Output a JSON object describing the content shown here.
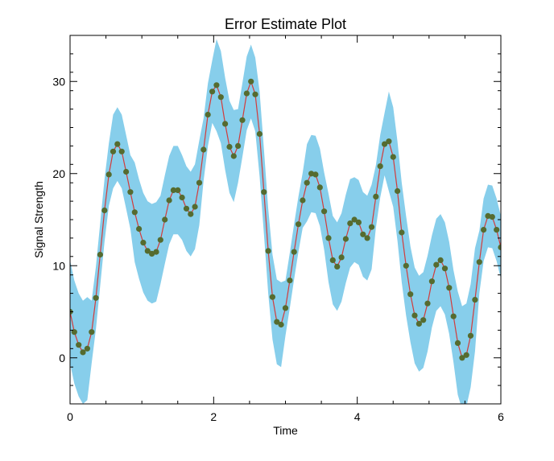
{
  "chart_data": {
    "type": "line",
    "title": "Error Estimate Plot",
    "xlabel": "Time",
    "ylabel": "Signal Strength",
    "xlim": [
      0,
      6
    ],
    "ylim": [
      -5,
      35
    ],
    "x_ticks": [
      0,
      2,
      4,
      6
    ],
    "y_ticks": [
      0,
      10,
      20,
      30
    ],
    "grid": false,
    "colors": {
      "band": "#87ceeb",
      "line": "#d23b3b",
      "marker": "#556b2f",
      "axis": "#000000"
    },
    "series": [
      {
        "x": [
          0.0,
          0.06,
          0.12,
          0.18,
          0.24,
          0.3,
          0.36,
          0.42,
          0.48,
          0.54,
          0.6,
          0.66,
          0.72,
          0.78,
          0.84,
          0.9,
          0.96,
          1.02,
          1.08,
          1.14,
          1.2,
          1.26,
          1.32,
          1.38,
          1.44,
          1.5,
          1.56,
          1.62,
          1.68,
          1.74,
          1.8,
          1.86,
          1.92,
          1.98,
          2.04,
          2.1,
          2.16,
          2.22,
          2.28,
          2.34,
          2.4,
          2.46,
          2.52,
          2.58,
          2.64,
          2.7,
          2.76,
          2.82,
          2.88,
          2.94,
          3.0,
          3.06,
          3.12,
          3.18,
          3.24,
          3.3,
          3.36,
          3.42,
          3.48,
          3.54,
          3.6,
          3.66,
          3.72,
          3.78,
          3.84,
          3.9,
          3.96,
          4.02,
          4.08,
          4.14,
          4.2,
          4.26,
          4.32,
          4.38,
          4.44,
          4.5,
          4.56,
          4.62,
          4.68,
          4.74,
          4.8,
          4.86,
          4.92,
          4.98,
          5.04,
          5.1,
          5.16,
          5.22,
          5.28,
          5.34,
          5.4,
          5.46,
          5.52,
          5.58,
          5.64,
          5.7,
          5.76,
          5.82,
          5.88,
          5.94,
          6.0
        ],
        "y": [
          5.0,
          2.8,
          1.4,
          0.6,
          1.0,
          2.8,
          6.5,
          11.2,
          16.0,
          19.9,
          22.4,
          23.2,
          22.4,
          20.2,
          18.0,
          15.8,
          14.0,
          12.5,
          11.6,
          11.3,
          11.5,
          12.8,
          15.0,
          17.1,
          18.2,
          18.2,
          17.4,
          16.2,
          15.6,
          16.4,
          19.0,
          22.6,
          26.4,
          28.9,
          29.6,
          28.3,
          25.4,
          22.9,
          21.9,
          23.0,
          25.8,
          28.7,
          30.0,
          28.6,
          24.3,
          18.0,
          11.6,
          6.6,
          3.9,
          3.6,
          5.4,
          8.4,
          11.5,
          14.5,
          17.1,
          19.0,
          20.0,
          19.9,
          18.5,
          15.9,
          13.0,
          10.6,
          9.9,
          10.9,
          12.9,
          14.6,
          15.0,
          14.7,
          13.4,
          13.0,
          14.2,
          17.5,
          20.8,
          23.2,
          23.5,
          21.8,
          18.1,
          13.6,
          10.0,
          6.9,
          4.6,
          3.7,
          4.1,
          5.9,
          8.3,
          10.1,
          10.6,
          9.7,
          7.6,
          4.5,
          1.6,
          0.0,
          0.3,
          2.4,
          6.3,
          10.4,
          13.9,
          15.4,
          15.3,
          13.9,
          12.0
        ],
        "error": [
          5.6,
          5.6,
          5.6,
          5.6,
          5.6,
          3.4,
          3.4,
          3.4,
          3.4,
          3.4,
          4.0,
          4.0,
          4.0,
          4.0,
          4.0,
          5.4,
          5.4,
          5.4,
          5.4,
          5.4,
          5.4,
          4.8,
          4.8,
          4.8,
          4.8,
          4.8,
          4.6,
          4.6,
          4.6,
          4.6,
          4.6,
          3.4,
          3.4,
          3.4,
          5.0,
          5.0,
          5.0,
          5.0,
          5.0,
          4.0,
          4.0,
          4.0,
          4.0,
          4.0,
          4.6,
          4.6,
          4.6,
          4.6,
          4.6,
          4.6,
          3.0,
          3.0,
          3.0,
          3.0,
          3.0,
          4.2,
          4.2,
          4.2,
          4.2,
          4.2,
          4.8,
          4.8,
          4.8,
          4.8,
          4.8,
          4.8,
          4.6,
          4.6,
          4.6,
          4.6,
          4.6,
          3.4,
          3.4,
          3.4,
          5.4,
          5.4,
          5.4,
          5.4,
          5.4,
          5.2,
          5.2,
          5.2,
          5.2,
          5.2,
          5.0,
          5.0,
          5.0,
          5.0,
          5.0,
          5.0,
          5.6,
          5.6,
          5.6,
          5.6,
          5.6,
          3.4,
          3.4,
          3.4,
          3.4,
          3.4,
          3.4
        ]
      }
    ]
  }
}
